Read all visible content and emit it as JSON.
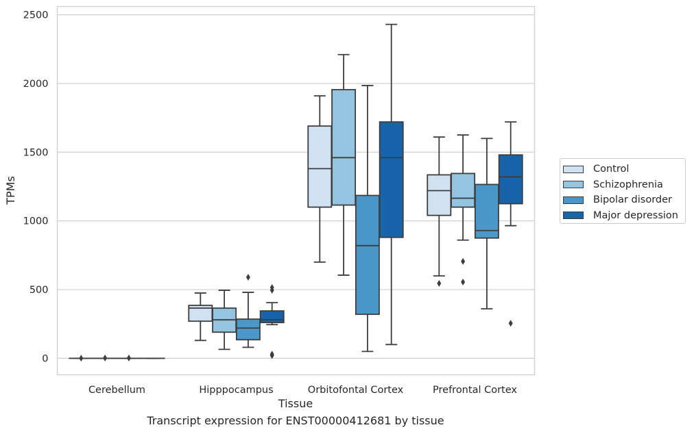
{
  "chart_data": {
    "type": "box",
    "title": "",
    "caption": "Transcript expression for ENST00000412681 by tissue",
    "xlabel": "Tissue",
    "ylabel": "TPMs",
    "ylim": [
      -120,
      2560
    ],
    "yticks": [
      0,
      500,
      1000,
      1500,
      2000,
      2500
    ],
    "grid": "horizontal",
    "legend_position": "right",
    "categories": [
      "Cerebellum",
      "Hipppocampus",
      "Orbitofontal Cortex",
      "Prefrontal Cortex"
    ],
    "series": [
      {
        "name": "Control",
        "color": "#d0e1f2",
        "boxes": [
          {
            "whislo": 0,
            "q1": 0,
            "med": 0,
            "q3": 0,
            "whishi": 0,
            "fliers": [
              1
            ]
          },
          {
            "whislo": 130,
            "q1": 270,
            "med": 365,
            "q3": 385,
            "whishi": 475,
            "fliers": []
          },
          {
            "whislo": 700,
            "q1": 1100,
            "med": 1380,
            "q3": 1690,
            "whishi": 1910,
            "fliers": []
          },
          {
            "whislo": 600,
            "q1": 1040,
            "med": 1220,
            "q3": 1335,
            "whishi": 1610,
            "fliers": [
              545
            ]
          }
        ]
      },
      {
        "name": "Schizophrenia",
        "color": "#94c4df",
        "boxes": [
          {
            "whislo": 0,
            "q1": 0,
            "med": 0,
            "q3": 0,
            "whishi": 0,
            "fliers": [
              2
            ]
          },
          {
            "whislo": 65,
            "q1": 190,
            "med": 280,
            "q3": 365,
            "whishi": 495,
            "fliers": []
          },
          {
            "whislo": 605,
            "q1": 1115,
            "med": 1460,
            "q3": 1955,
            "whishi": 2210,
            "fliers": []
          },
          {
            "whislo": 860,
            "q1": 1100,
            "med": 1165,
            "q3": 1345,
            "whishi": 1625,
            "fliers": [
              705,
              555
            ]
          }
        ]
      },
      {
        "name": "Bipolar disorder",
        "color": "#4a98c9",
        "boxes": [
          {
            "whislo": 0,
            "q1": 0,
            "med": 0,
            "q3": 0,
            "whishi": 0,
            "fliers": [
              2
            ]
          },
          {
            "whislo": 80,
            "q1": 135,
            "med": 220,
            "q3": 285,
            "whishi": 480,
            "fliers": [
              590
            ]
          },
          {
            "whislo": 50,
            "q1": 320,
            "med": 820,
            "q3": 1185,
            "whishi": 1985,
            "fliers": []
          },
          {
            "whislo": 360,
            "q1": 875,
            "med": 930,
            "q3": 1265,
            "whishi": 1600,
            "fliers": []
          }
        ]
      },
      {
        "name": "Major depression",
        "color": "#1764ab",
        "boxes": [
          {
            "whislo": 0,
            "q1": 0,
            "med": 0,
            "q3": 0,
            "whishi": 0,
            "fliers": []
          },
          {
            "whislo": 245,
            "q1": 260,
            "med": 280,
            "q3": 345,
            "whishi": 405,
            "fliers": [
              515,
              495,
              30,
              20
            ]
          },
          {
            "whislo": 100,
            "q1": 880,
            "med": 1460,
            "q3": 1720,
            "whishi": 2430,
            "fliers": []
          },
          {
            "whislo": 965,
            "q1": 1125,
            "med": 1320,
            "q3": 1480,
            "whishi": 1720,
            "fliers": [
              255
            ]
          }
        ]
      }
    ]
  }
}
